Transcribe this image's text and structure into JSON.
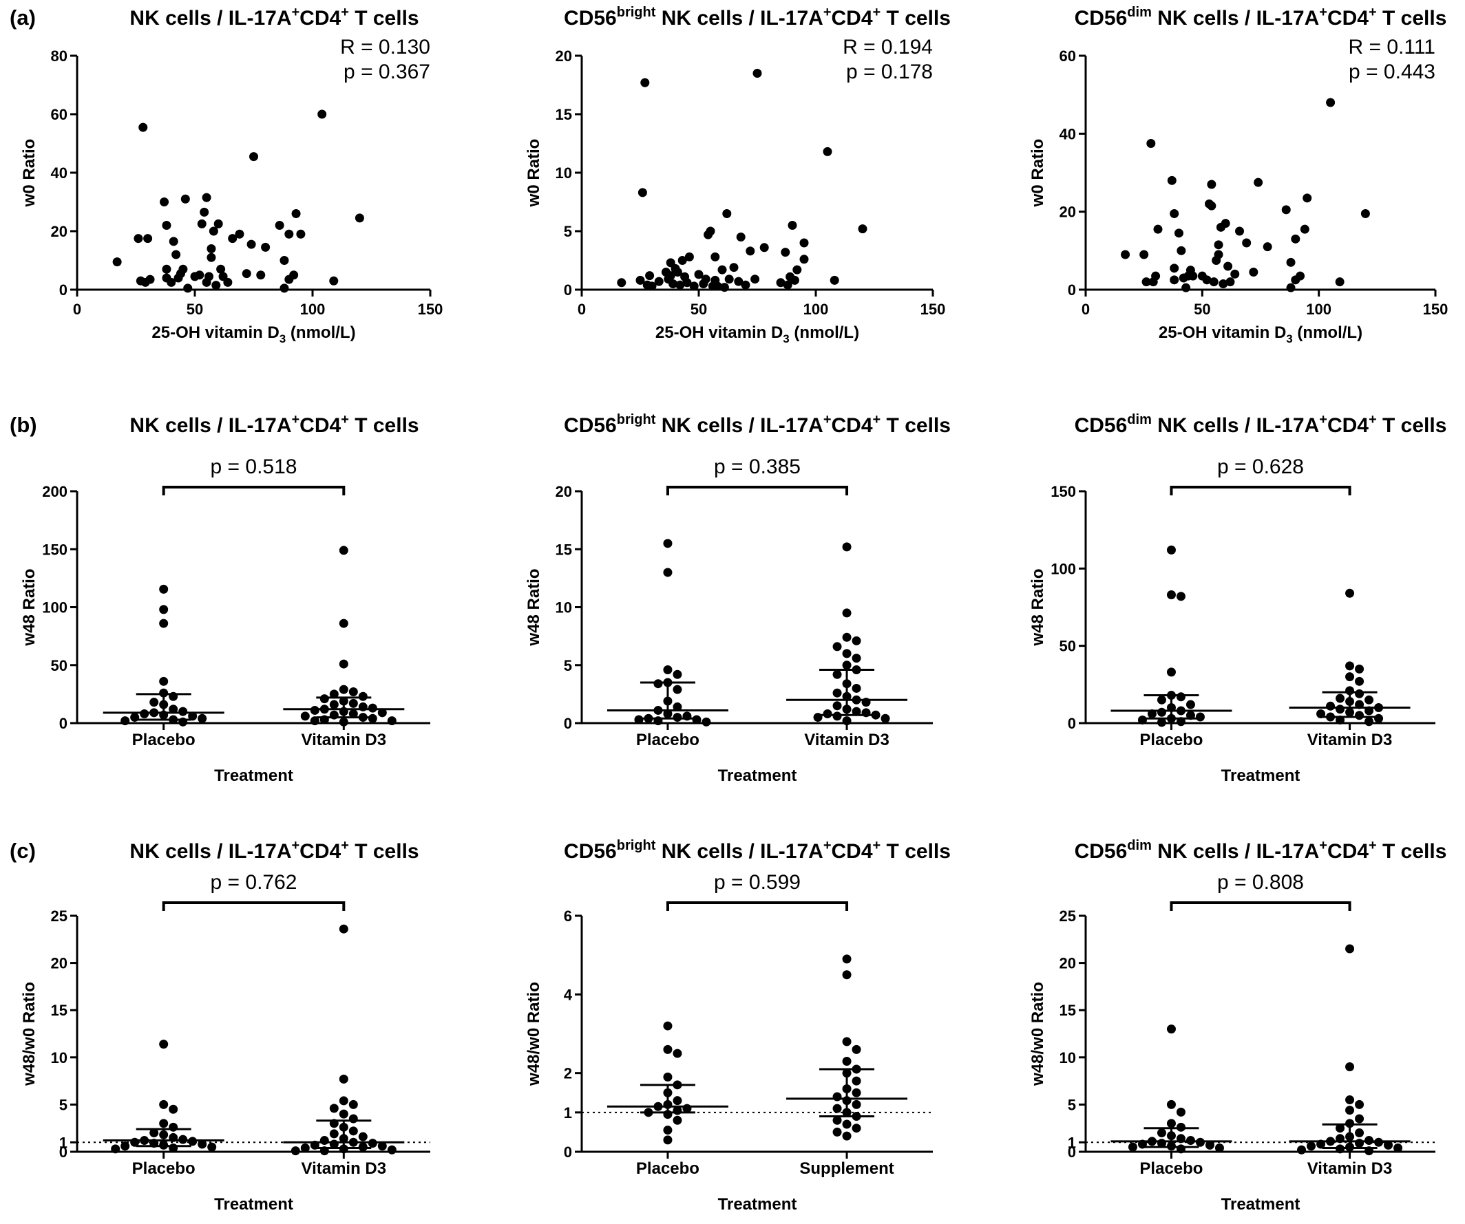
{
  "rows": [
    {
      "letter": "(a)"
    },
    {
      "letter": "(b)"
    },
    {
      "letter": "(c)"
    }
  ],
  "chart_data": [
    {
      "type": "scatter",
      "title": {
        "main": "NK cells / IL-17A",
        "sup1": "+",
        "mid": "CD4",
        "sup2": "+",
        "end": " T cells"
      },
      "xlabel": {
        "main": "25-OH vitamin D",
        "sub": "3",
        "end": " (nmol/L)"
      },
      "ylabel": "w0 Ratio",
      "xlim": [
        0,
        150
      ],
      "ylim": [
        0,
        80
      ],
      "xticks": [
        0,
        50,
        100,
        150
      ],
      "yticks": [
        0,
        20,
        40,
        60,
        80
      ],
      "stats": [
        "R = 0.130",
        "p = 0.367"
      ],
      "points": [
        [
          17,
          9.5
        ],
        [
          26,
          17.5
        ],
        [
          27,
          3
        ],
        [
          28,
          55.5
        ],
        [
          29,
          2.5
        ],
        [
          30,
          17.5
        ],
        [
          31,
          3.5
        ],
        [
          37,
          30
        ],
        [
          38,
          22
        ],
        [
          38,
          7
        ],
        [
          38,
          4
        ],
        [
          40,
          2.5
        ],
        [
          41,
          16.5
        ],
        [
          42,
          12
        ],
        [
          43,
          4
        ],
        [
          44,
          5.5
        ],
        [
          45,
          7
        ],
        [
          46,
          31
        ],
        [
          47,
          0.5
        ],
        [
          50,
          4.5
        ],
        [
          52,
          5
        ],
        [
          53,
          22.5
        ],
        [
          54,
          26.5
        ],
        [
          55,
          31.5
        ],
        [
          55,
          2.5
        ],
        [
          56,
          4.5
        ],
        [
          57,
          11
        ],
        [
          57,
          14
        ],
        [
          58,
          20
        ],
        [
          59,
          1.5
        ],
        [
          60,
          22.5
        ],
        [
          61,
          7
        ],
        [
          62,
          4.5
        ],
        [
          64,
          2.5
        ],
        [
          66,
          17.5
        ],
        [
          69,
          19
        ],
        [
          72,
          5.5
        ],
        [
          74,
          15.5
        ],
        [
          75,
          45.5
        ],
        [
          78,
          5
        ],
        [
          80,
          14.5
        ],
        [
          86,
          22
        ],
        [
          88,
          0.5
        ],
        [
          88,
          10
        ],
        [
          90,
          3.5
        ],
        [
          90,
          19
        ],
        [
          92,
          5
        ],
        [
          93,
          26
        ],
        [
          95,
          19
        ],
        [
          104,
          60
        ],
        [
          109,
          3
        ],
        [
          120,
          24.5
        ]
      ]
    },
    {
      "type": "scatter",
      "title": {
        "main": "CD56",
        "sup1": "bright",
        "mid": " NK cells / IL-17A",
        "sup2": "+",
        "mid2": "CD4",
        "sup3": "+",
        "end": " T cells"
      },
      "xlabel": {
        "main": "25-OH vitamin D",
        "sub": "3",
        "end": " (nmol/L)"
      },
      "ylabel": "w0 Ratio",
      "xlim": [
        0,
        150
      ],
      "ylim": [
        0,
        20
      ],
      "xticks": [
        0,
        50,
        100,
        150
      ],
      "yticks": [
        0,
        5,
        10,
        15,
        20
      ],
      "stats": [
        "R = 0.194",
        "p = 0.178"
      ],
      "points": [
        [
          17,
          0.6
        ],
        [
          25,
          0.8
        ],
        [
          26,
          8.3
        ],
        [
          27,
          17.7
        ],
        [
          28,
          0.4
        ],
        [
          29,
          1.2
        ],
        [
          30,
          0.3
        ],
        [
          33,
          0.7
        ],
        [
          36,
          1.5
        ],
        [
          37,
          0.9
        ],
        [
          38,
          2.3
        ],
        [
          38,
          1.2
        ],
        [
          39,
          0.5
        ],
        [
          40,
          1.8
        ],
        [
          41,
          1.5
        ],
        [
          42,
          0.4
        ],
        [
          43,
          2.5
        ],
        [
          44,
          1.1
        ],
        [
          45,
          0.6
        ],
        [
          46,
          2.8
        ],
        [
          48,
          0.3
        ],
        [
          50,
          1.3
        ],
        [
          52,
          0.5
        ],
        [
          53,
          0.9
        ],
        [
          54,
          4.7
        ],
        [
          55,
          5
        ],
        [
          56,
          0.3
        ],
        [
          57,
          0.8
        ],
        [
          57,
          2.8
        ],
        [
          58,
          0.3
        ],
        [
          60,
          1.7
        ],
        [
          61,
          0.2
        ],
        [
          62,
          6.5
        ],
        [
          63,
          0.9
        ],
        [
          65,
          1.9
        ],
        [
          67,
          0.7
        ],
        [
          68,
          4.5
        ],
        [
          70,
          0.4
        ],
        [
          72,
          3.3
        ],
        [
          74,
          0.9
        ],
        [
          75,
          18.5
        ],
        [
          78,
          3.6
        ],
        [
          85,
          0.6
        ],
        [
          87,
          3.2
        ],
        [
          88,
          0.4
        ],
        [
          89,
          1.1
        ],
        [
          90,
          5.5
        ],
        [
          91,
          0.8
        ],
        [
          92,
          1.7
        ],
        [
          95,
          2.6
        ],
        [
          95,
          4
        ],
        [
          105,
          11.8
        ],
        [
          108,
          0.8
        ],
        [
          120,
          5.2
        ]
      ]
    },
    {
      "type": "scatter",
      "title": {
        "main": "CD56",
        "sup1": "dim",
        "mid": " NK cells / IL-17A",
        "sup2": "+",
        "mid2": "CD4",
        "sup3": "+",
        "end": " T cells"
      },
      "xlabel": {
        "main": "25-OH vitamin D",
        "sub": "3",
        "end": " (nmol/L)"
      },
      "ylabel": "w0 Ratio",
      "xlim": [
        0,
        150
      ],
      "ylim": [
        0,
        60
      ],
      "xticks": [
        0,
        50,
        100,
        150
      ],
      "yticks": [
        0,
        20,
        40,
        60
      ],
      "stats": [
        "R = 0.111",
        "p = 0.443"
      ],
      "points": [
        [
          17,
          9
        ],
        [
          25,
          9
        ],
        [
          26,
          2
        ],
        [
          28,
          37.5
        ],
        [
          29,
          2
        ],
        [
          30,
          3.5
        ],
        [
          31,
          15.5
        ],
        [
          37,
          28
        ],
        [
          38,
          19.5
        ],
        [
          38,
          5.5
        ],
        [
          38,
          2.5
        ],
        [
          40,
          14.5
        ],
        [
          41,
          10
        ],
        [
          42,
          3
        ],
        [
          43,
          0.5
        ],
        [
          44,
          3.5
        ],
        [
          45,
          5
        ],
        [
          46,
          3.5
        ],
        [
          50,
          3.5
        ],
        [
          52,
          2.5
        ],
        [
          53,
          22
        ],
        [
          54,
          27
        ],
        [
          54,
          21.5
        ],
        [
          55,
          2
        ],
        [
          56,
          7.5
        ],
        [
          57,
          9
        ],
        [
          57,
          11.5
        ],
        [
          58,
          16
        ],
        [
          59,
          1.5
        ],
        [
          60,
          17
        ],
        [
          61,
          6
        ],
        [
          62,
          2
        ],
        [
          64,
          4
        ],
        [
          66,
          15
        ],
        [
          69,
          12
        ],
        [
          72,
          4.5
        ],
        [
          74,
          27.5
        ],
        [
          78,
          11
        ],
        [
          86,
          20.5
        ],
        [
          88,
          7
        ],
        [
          88,
          0.5
        ],
        [
          90,
          2.5
        ],
        [
          90,
          13
        ],
        [
          92,
          3.5
        ],
        [
          94,
          15.5
        ],
        [
          95,
          23.5
        ],
        [
          105,
          48
        ],
        [
          109,
          2
        ],
        [
          120,
          19.5
        ]
      ]
    },
    {
      "type": "scatter",
      "title": {
        "main": "NK cells / IL-17A",
        "sup1": "+",
        "mid": "CD4",
        "sup2": "+",
        "end": " T cells"
      },
      "xlabel": "Treatment",
      "ylabel": "w48 Ratio",
      "ylim": [
        0,
        200
      ],
      "yticks": [
        0,
        50,
        100,
        150,
        200
      ],
      "pvalue": "p = 0.518",
      "categories": [
        "Placebo",
        "Vitamin D3"
      ],
      "groups": [
        {
          "median": 9,
          "q1": 3,
          "q3": 25,
          "values": [
            115.5,
            98,
            86,
            36,
            26,
            23,
            18,
            16,
            12,
            10,
            9,
            8,
            7,
            6,
            5,
            4,
            3,
            2,
            1
          ]
        },
        {
          "median": 12,
          "q1": 5,
          "q3": 22,
          "values": [
            149,
            86,
            51,
            29,
            27,
            25,
            23,
            21,
            19,
            17,
            16,
            14,
            13,
            12,
            11,
            10,
            9,
            8,
            7,
            6,
            5,
            4,
            3,
            2,
            2,
            1
          ]
        }
      ]
    },
    {
      "type": "scatter",
      "title": {
        "main": "CD56",
        "sup1": "bright",
        "mid": " NK cells / IL-17A",
        "sup2": "+",
        "mid2": "CD4",
        "sup3": "+",
        "end": " T cells"
      },
      "xlabel": "Treatment",
      "ylabel": "w48 Ratio",
      "ylim": [
        0,
        20
      ],
      "yticks": [
        0,
        5,
        10,
        15,
        20
      ],
      "pvalue": "p = 0.385",
      "categories": [
        "Placebo",
        "Vitamin D3"
      ],
      "groups": [
        {
          "median": 1.1,
          "q1": 0.4,
          "q3": 3.5,
          "values": [
            15.5,
            13,
            4.6,
            4.2,
            3.5,
            3.4,
            2.9,
            1.9,
            1.4,
            1.1,
            0.8,
            0.6,
            0.5,
            0.4,
            0.3,
            0.3,
            0.2,
            0.1
          ]
        },
        {
          "median": 2,
          "q1": 0.7,
          "q3": 4.6,
          "values": [
            15.2,
            9.5,
            7.4,
            7.1,
            6.6,
            6,
            5.6,
            5,
            4.6,
            4.2,
            3.4,
            3,
            2.6,
            2.3,
            2,
            1.8,
            1.5,
            1.2,
            1,
            0.9,
            0.8,
            0.7,
            0.6,
            0.5,
            0.4,
            0.2
          ]
        }
      ]
    },
    {
      "type": "scatter",
      "title": {
        "main": "CD56",
        "sup1": "dim",
        "mid": " NK cells / IL-17A",
        "sup2": "+",
        "mid2": "CD4",
        "sup3": "+",
        "end": " T cells"
      },
      "xlabel": "Treatment",
      "ylabel": "w48 Ratio",
      "ylim": [
        0,
        150
      ],
      "yticks": [
        0,
        50,
        100,
        150
      ],
      "pvalue": "p = 0.628",
      "categories": [
        "Placebo",
        "Vitamin D3"
      ],
      "groups": [
        {
          "median": 8,
          "q1": 3,
          "q3": 18,
          "values": [
            112,
            83,
            82,
            33,
            18,
            17,
            15,
            12,
            10,
            8,
            7,
            6,
            5,
            4,
            3,
            2,
            1,
            0.5
          ]
        },
        {
          "median": 10,
          "q1": 4,
          "q3": 20,
          "values": [
            84,
            37,
            35,
            30,
            27,
            21,
            19,
            16,
            15,
            14,
            12,
            11,
            10,
            9,
            8,
            7,
            6,
            5,
            4,
            3,
            2,
            1
          ]
        }
      ]
    },
    {
      "type": "scatter",
      "title": {
        "main": "NK cells / IL-17A",
        "sup1": "+",
        "mid": "CD4",
        "sup2": "+",
        "end": " T cells"
      },
      "xlabel": "Treatment",
      "ylabel": "w48/w0 Ratio",
      "ylim": [
        0,
        25
      ],
      "yticks": [
        0,
        1,
        5,
        10,
        15,
        20,
        25
      ],
      "refline": 1,
      "pvalue": "p = 0.762",
      "categories": [
        "Placebo",
        "Vitamin D3"
      ],
      "groups": [
        {
          "median": 1.2,
          "q1": 0.6,
          "q3": 2.4,
          "values": [
            11.4,
            5,
            4.5,
            3,
            2.6,
            2,
            1.8,
            1.5,
            1.3,
            1.2,
            1.1,
            1,
            0.9,
            0.8,
            0.7,
            0.6,
            0.5,
            0.4,
            0.3
          ]
        },
        {
          "median": 1,
          "q1": 0.4,
          "q3": 3.3,
          "values": [
            23.6,
            7.7,
            5.4,
            5,
            4.6,
            4,
            3.5,
            3,
            2.6,
            2.2,
            1.9,
            1.6,
            1.4,
            1.2,
            1,
            0.9,
            0.8,
            0.7,
            0.6,
            0.5,
            0.4,
            0.3,
            0.2,
            0.1,
            0.1
          ]
        }
      ]
    },
    {
      "type": "scatter",
      "title": {
        "main": "CD56",
        "sup1": "bright",
        "mid": " NK cells / IL-17A",
        "sup2": "+",
        "mid2": "CD4",
        "sup3": "+",
        "end": " T cells"
      },
      "xlabel": "Treatment",
      "ylabel": "w48/w0 Ratio",
      "ylim": [
        0,
        6
      ],
      "yticks": [
        0,
        1,
        2,
        4,
        6
      ],
      "refline": 1,
      "pvalue": "p = 0.599",
      "categories": [
        "Placebo",
        "Supplement"
      ],
      "groups": [
        {
          "median": 1.15,
          "q1": 1,
          "q3": 1.7,
          "values": [
            3.2,
            2.6,
            2.5,
            1.9,
            1.7,
            1.5,
            1.3,
            1.2,
            1.15,
            1.1,
            1.05,
            1,
            0.95,
            0.8,
            0.55,
            0.3
          ]
        },
        {
          "median": 1.35,
          "q1": 0.9,
          "q3": 2.1,
          "values": [
            4.9,
            4.5,
            2.8,
            2.6,
            2.3,
            2.1,
            2,
            1.8,
            1.6,
            1.5,
            1.4,
            1.3,
            1.2,
            1.1,
            1,
            0.9,
            0.8,
            0.7,
            0.6,
            0.5,
            0.4
          ]
        }
      ]
    },
    {
      "type": "scatter",
      "title": {
        "main": "CD56",
        "sup1": "dim",
        "mid": " NK cells / IL-17A",
        "sup2": "+",
        "mid2": "CD4",
        "sup3": "+",
        "end": " T cells"
      },
      "xlabel": "Treatment",
      "ylabel": "w48/w0 Ratio",
      "ylim": [
        0,
        25
      ],
      "yticks": [
        0,
        1,
        5,
        10,
        15,
        20,
        25
      ],
      "refline": 1,
      "pvalue": "p = 0.808",
      "categories": [
        "Placebo",
        "Vitamin D3"
      ],
      "groups": [
        {
          "median": 1.1,
          "q1": 0.5,
          "q3": 2.5,
          "values": [
            13,
            5,
            4.2,
            3,
            2.6,
            2,
            1.7,
            1.4,
            1.2,
            1.1,
            1,
            0.9,
            0.8,
            0.7,
            0.6,
            0.5,
            0.4,
            0.3
          ]
        },
        {
          "median": 1.1,
          "q1": 0.4,
          "q3": 2.9,
          "values": [
            21.5,
            9,
            5.5,
            5,
            4.4,
            3.5,
            3,
            2.5,
            2,
            1.6,
            1.4,
            1.2,
            1.1,
            1,
            0.9,
            0.8,
            0.7,
            0.6,
            0.5,
            0.4,
            0.3,
            0.2,
            0.1
          ]
        }
      ]
    }
  ]
}
